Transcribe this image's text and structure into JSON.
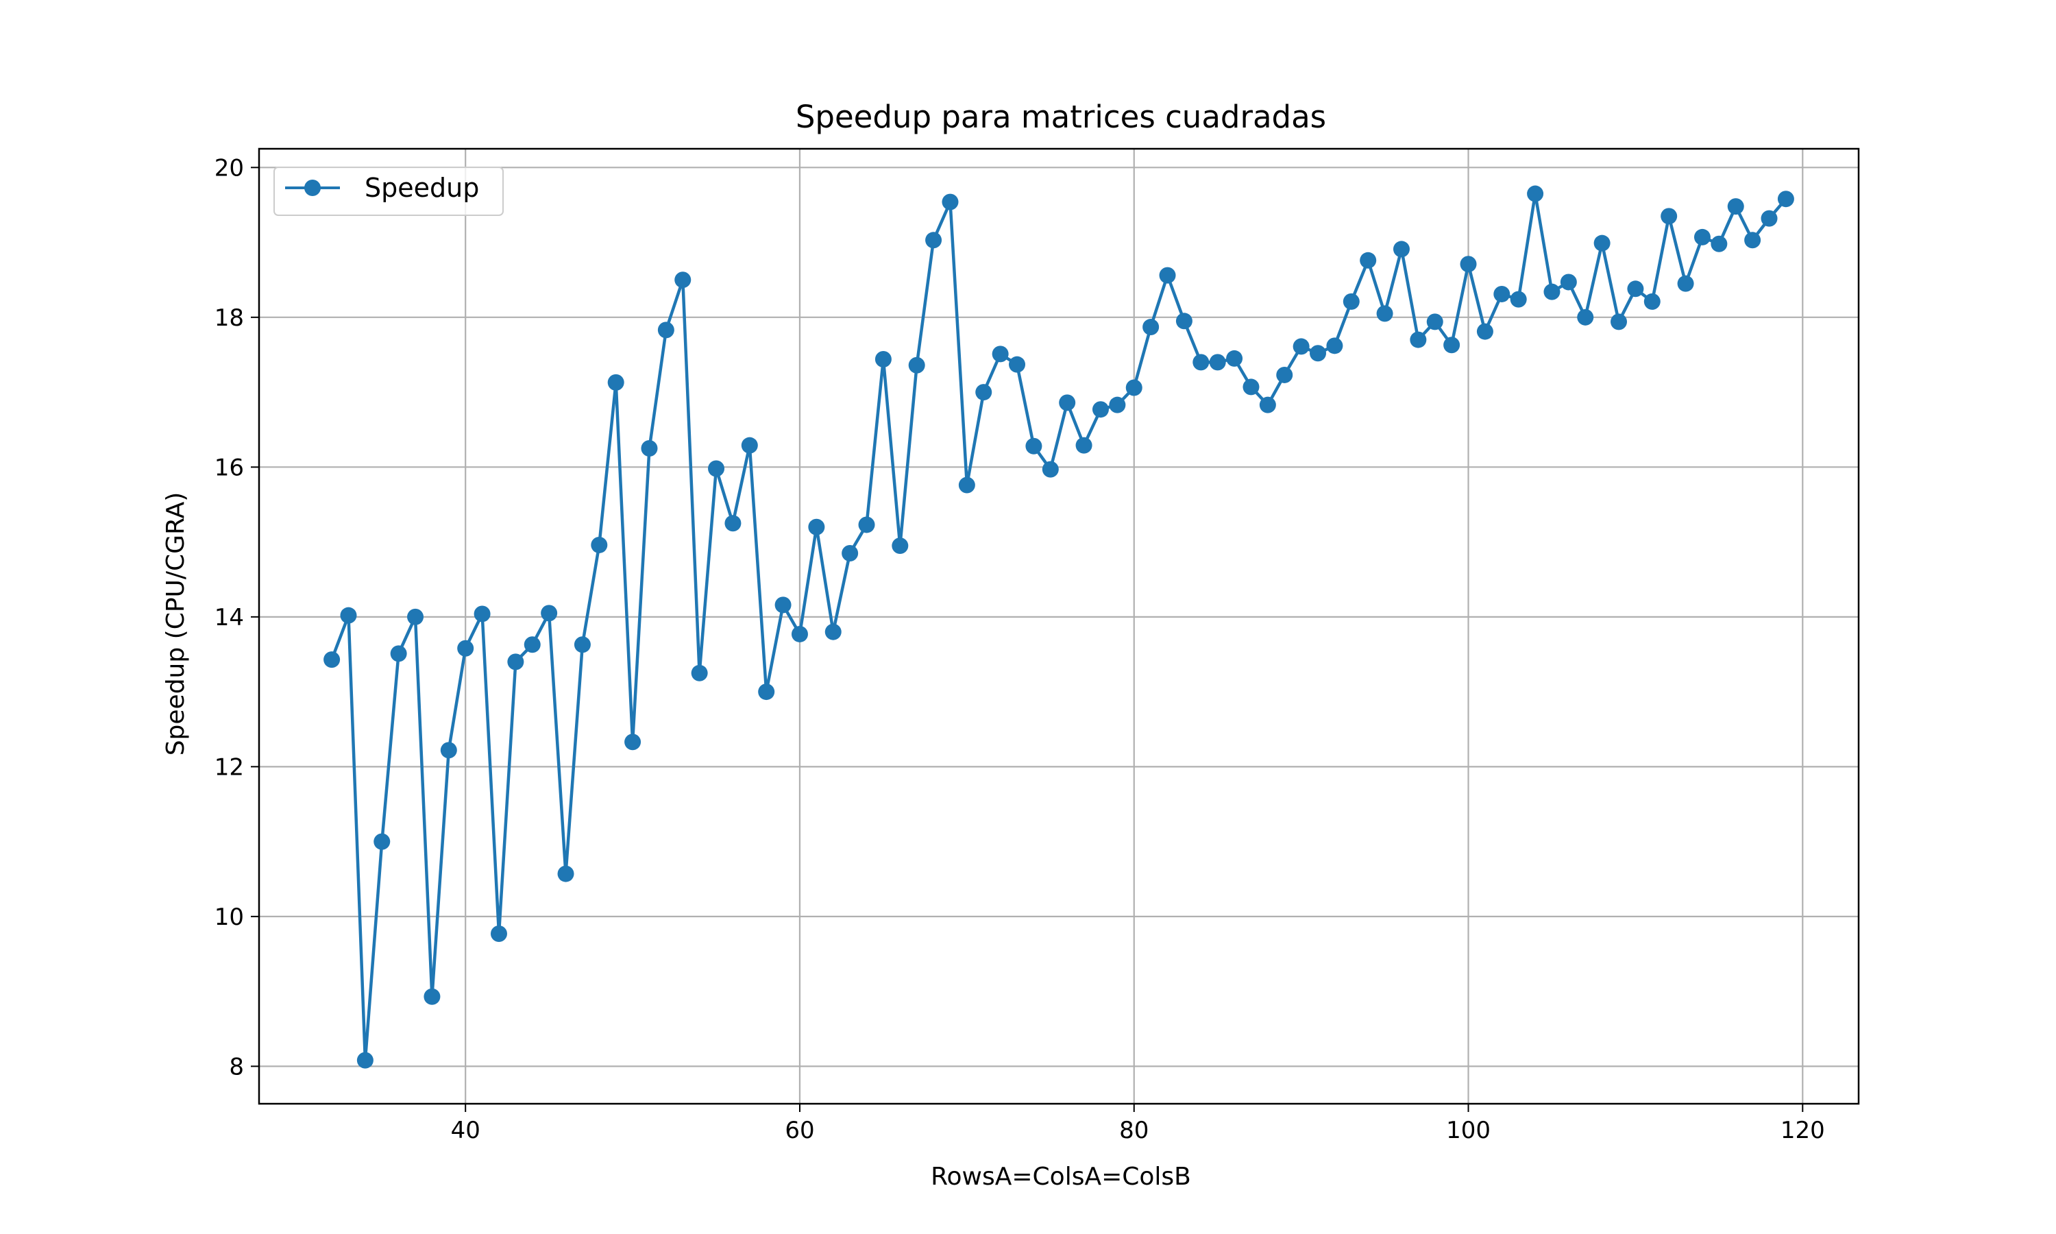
{
  "chart_data": {
    "type": "line",
    "title": "Speedup para matrices cuadradas",
    "xlabel": "RowsA=ColsA=ColsB",
    "ylabel": "Speedup (CPU/CGRA)",
    "xlim": [
      27.65,
      123.35
    ],
    "ylim": [
      7.5,
      20.25
    ],
    "xticks": [
      40,
      60,
      80,
      100,
      120
    ],
    "yticks": [
      8,
      10,
      12,
      14,
      16,
      18,
      20
    ],
    "grid": true,
    "legend_position": "upper left",
    "series": [
      {
        "name": "Speedup",
        "color": "#1f77b4",
        "marker": "circle",
        "x": [
          32,
          33,
          34,
          35,
          36,
          37,
          38,
          39,
          40,
          41,
          42,
          43,
          44,
          45,
          46,
          47,
          48,
          49,
          50,
          51,
          52,
          53,
          54,
          55,
          56,
          57,
          58,
          59,
          60,
          61,
          62,
          63,
          64,
          65,
          66,
          67,
          68,
          69,
          70,
          71,
          72,
          73,
          74,
          75,
          76,
          77,
          78,
          79,
          80,
          81,
          82,
          83,
          84,
          85,
          86,
          87,
          88,
          89,
          90,
          91,
          92,
          93,
          94,
          95,
          96,
          97,
          98,
          99,
          100,
          101,
          102,
          103,
          104,
          105,
          106,
          107,
          108,
          109,
          110,
          111,
          112,
          113,
          114,
          115,
          116,
          117,
          118,
          119
        ],
        "values": [
          13.43,
          14.02,
          8.08,
          11.0,
          13.51,
          14.0,
          8.93,
          12.22,
          13.58,
          14.04,
          9.77,
          13.4,
          13.63,
          14.05,
          10.57,
          13.63,
          14.96,
          17.13,
          12.33,
          16.25,
          17.83,
          18.5,
          13.25,
          15.98,
          15.25,
          16.29,
          13.0,
          14.16,
          13.77,
          15.2,
          13.8,
          14.85,
          15.23,
          17.44,
          14.95,
          17.36,
          19.03,
          19.54,
          15.76,
          17.0,
          17.51,
          17.37,
          16.28,
          15.97,
          16.86,
          16.29,
          16.77,
          16.83,
          17.06,
          17.87,
          18.56,
          17.95,
          17.4,
          17.4,
          17.45,
          17.07,
          16.83,
          17.23,
          17.61,
          17.52,
          17.62,
          18.21,
          18.76,
          18.05,
          18.91,
          17.7,
          17.94,
          17.63,
          18.71,
          17.81,
          18.31,
          18.24,
          19.65,
          18.34,
          18.47,
          18.0,
          18.99,
          17.94,
          18.38,
          18.21,
          19.35,
          18.45,
          19.07,
          18.98,
          19.48,
          19.03,
          19.32,
          19.58
        ]
      }
    ]
  }
}
